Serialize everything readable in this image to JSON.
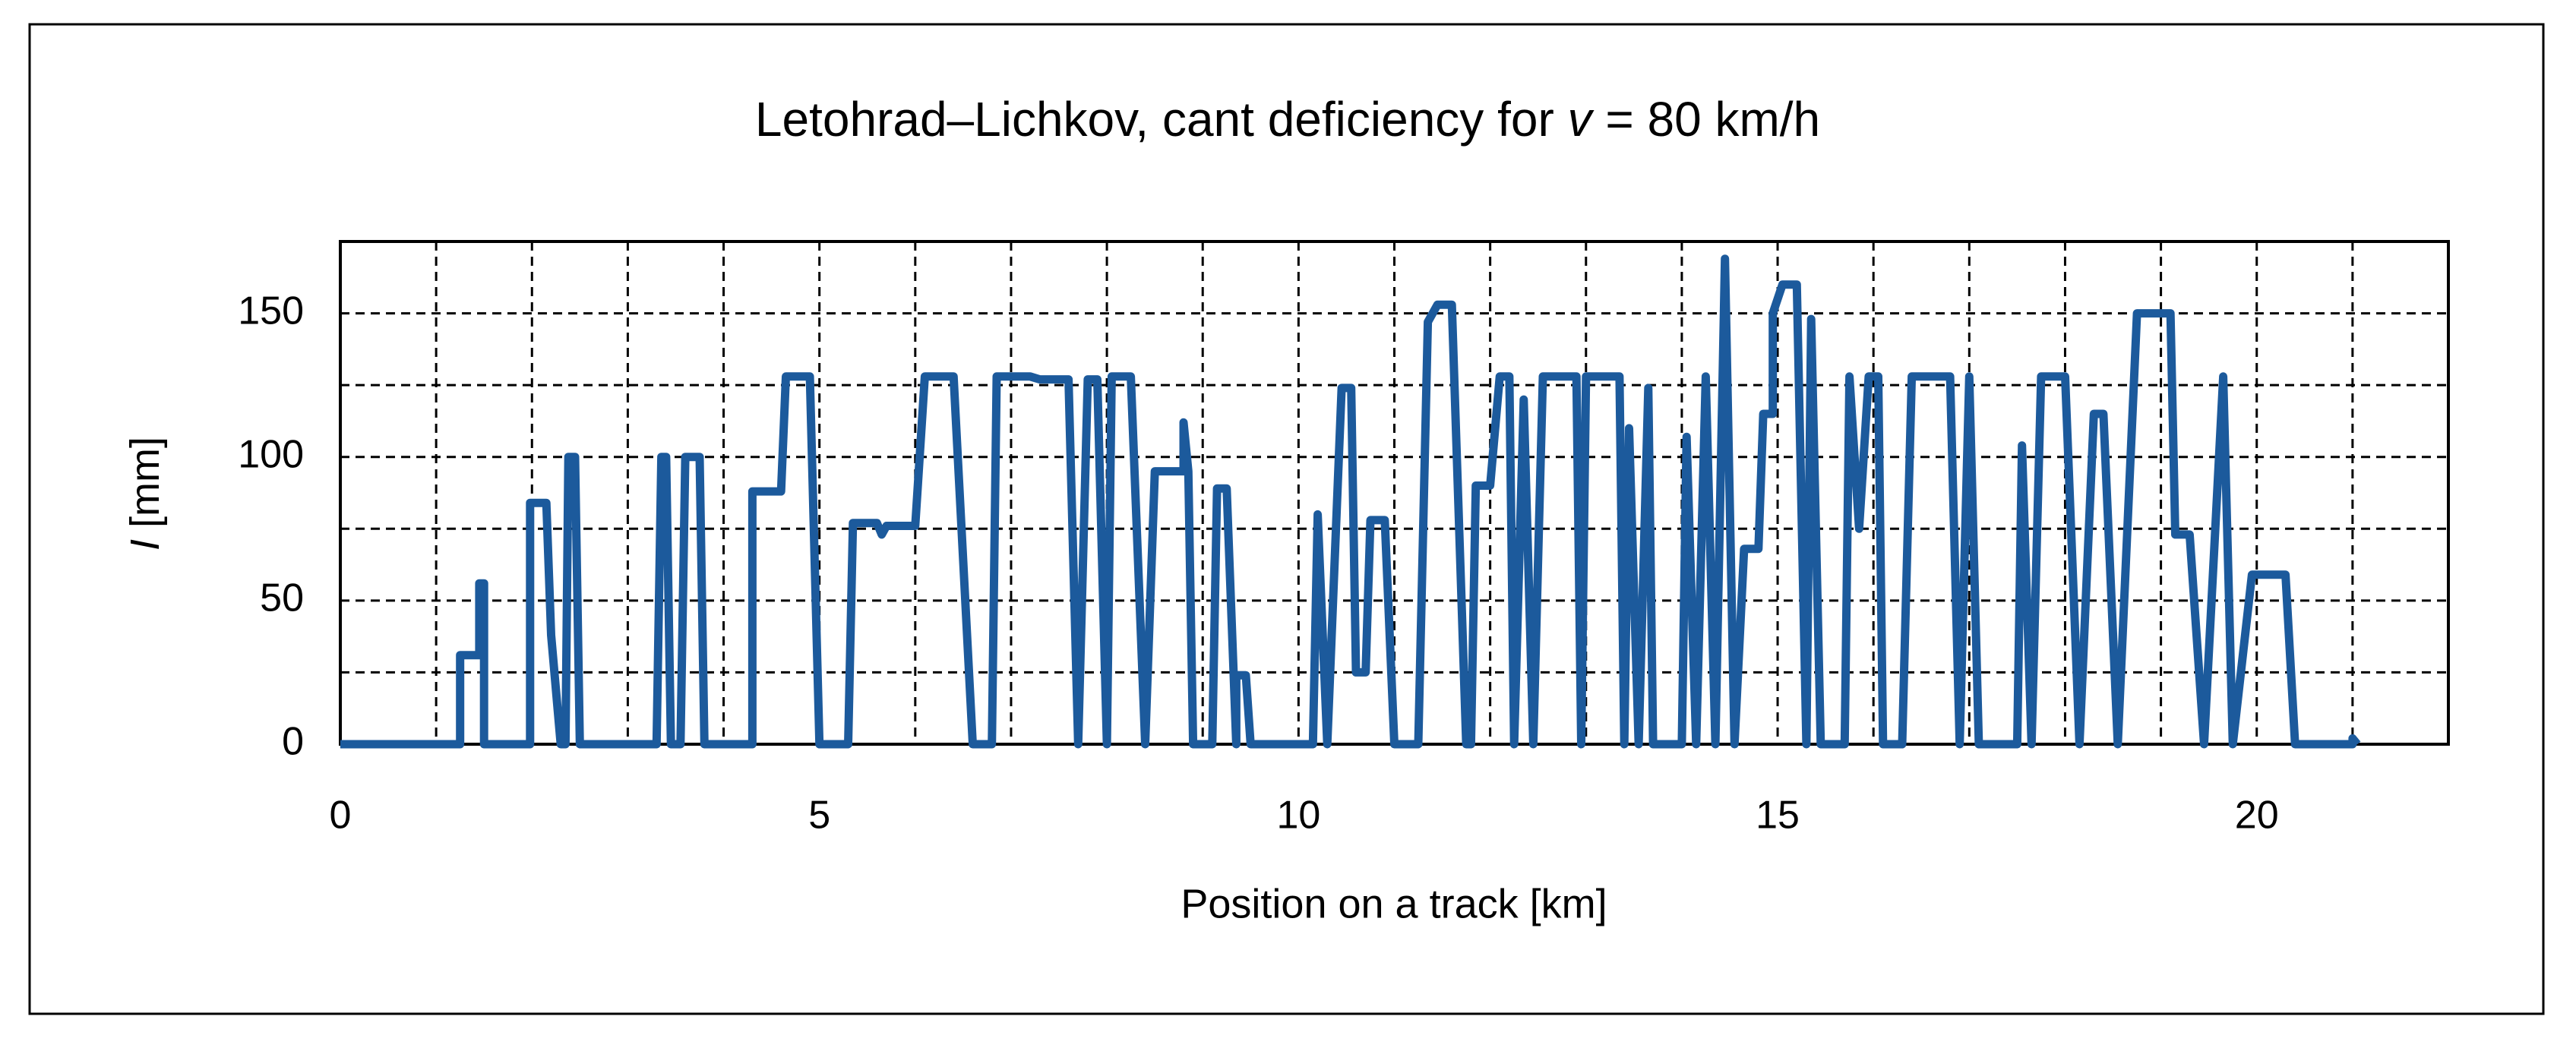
{
  "chart_data": {
    "type": "line",
    "title_parts": [
      "Letohrad–Lichkov, cant deficiency for ",
      "v",
      " = 80 km/h"
    ],
    "x_label": "Position on a track [km]",
    "y_label_parts": [
      "I",
      " [mm]"
    ],
    "xlim": [
      0,
      22
    ],
    "xticks": [
      0,
      5,
      10,
      15,
      20
    ],
    "x_minor_ticks": [
      1,
      2,
      3,
      4,
      6,
      7,
      8,
      9,
      11,
      12,
      13,
      14,
      16,
      17,
      18,
      19,
      21
    ],
    "ylim": [
      0,
      175
    ],
    "yticks": [
      0,
      50,
      100,
      150
    ],
    "y_minor_ticks": [
      25,
      75,
      125
    ],
    "grid": true,
    "series": [
      {
        "color": "#1c5a9c",
        "x": [
          0,
          1.25,
          1.25,
          1.45,
          1.45,
          1.5,
          1.5,
          1.98,
          1.98,
          2.15,
          2.2,
          2.3,
          2.35,
          2.38,
          2.45,
          2.5,
          3.3,
          3.35,
          3.4,
          3.45,
          3.55,
          3.6,
          3.75,
          3.8,
          4.3,
          4.3,
          4.6,
          4.65,
          4.9,
          5.0,
          5.3,
          5.35,
          5.6,
          5.65,
          5.7,
          6.0,
          6.1,
          6.4,
          6.6,
          6.8,
          6.85,
          7.2,
          7.3,
          7.6,
          7.7,
          7.8,
          7.9,
          8.0,
          8.05,
          8.25,
          8.4,
          8.5,
          8.8,
          8.8,
          8.85,
          8.9,
          9.1,
          9.15,
          9.25,
          9.35,
          9.35,
          9.45,
          9.5,
          10.15,
          10.2,
          10.3,
          10.45,
          10.55,
          10.6,
          10.7,
          10.75,
          10.9,
          11.0,
          11.25,
          11.35,
          11.45,
          11.6,
          11.75,
          11.8,
          11.85,
          12.0,
          12.1,
          12.2,
          12.25,
          12.35,
          12.45,
          12.55,
          12.9,
          12.95,
          13.0,
          13.35,
          13.4,
          13.45,
          13.55,
          13.65,
          13.7,
          14.0,
          14.05,
          14.15,
          14.25,
          14.35,
          14.45,
          14.55,
          14.65,
          14.8,
          14.85,
          14.95,
          14.95,
          15.05,
          15.2,
          15.3,
          15.35,
          15.45,
          15.7,
          15.75,
          15.85,
          15.95,
          16.05,
          16.1,
          16.3,
          16.4,
          16.8,
          16.9,
          17.0,
          17.1,
          17.5,
          17.55,
          17.65,
          17.75,
          18.0,
          18.15,
          18.3,
          18.4,
          18.55,
          18.75,
          19.1,
          19.15,
          19.3,
          19.45,
          19.65,
          19.75,
          19.95,
          20.3,
          20.4,
          21.0,
          21.0,
          21.05
        ],
        "values": [
          0,
          0,
          31,
          31,
          56,
          56,
          0,
          0,
          84,
          84,
          38,
          0,
          0,
          100,
          100,
          0,
          0,
          100,
          100,
          0,
          0,
          100,
          100,
          0,
          0,
          88,
          88,
          128,
          128,
          0,
          0,
          77,
          77,
          73,
          76,
          76,
          128,
          128,
          0,
          0,
          128,
          128,
          127,
          127,
          0,
          127,
          127,
          0,
          128,
          128,
          0,
          95,
          95,
          112,
          95,
          0,
          0,
          89,
          89,
          0,
          24,
          24,
          0,
          0,
          80,
          0,
          124,
          124,
          25,
          25,
          78,
          78,
          0,
          0,
          147,
          153,
          153,
          0,
          0,
          90,
          90,
          128,
          128,
          0,
          120,
          0,
          128,
          128,
          0,
          128,
          128,
          0,
          110,
          0,
          124,
          0,
          0,
          107,
          0,
          128,
          0,
          169,
          0,
          68,
          68,
          115,
          115,
          150,
          160,
          160,
          0,
          148,
          0,
          0,
          128,
          75,
          128,
          128,
          0,
          0,
          128,
          128,
          0,
          128,
          0,
          0,
          104,
          0,
          128,
          128,
          0,
          115,
          115,
          0,
          150,
          150,
          73,
          73,
          0,
          128,
          0,
          59,
          59,
          0,
          0,
          2,
          0
        ]
      }
    ]
  }
}
